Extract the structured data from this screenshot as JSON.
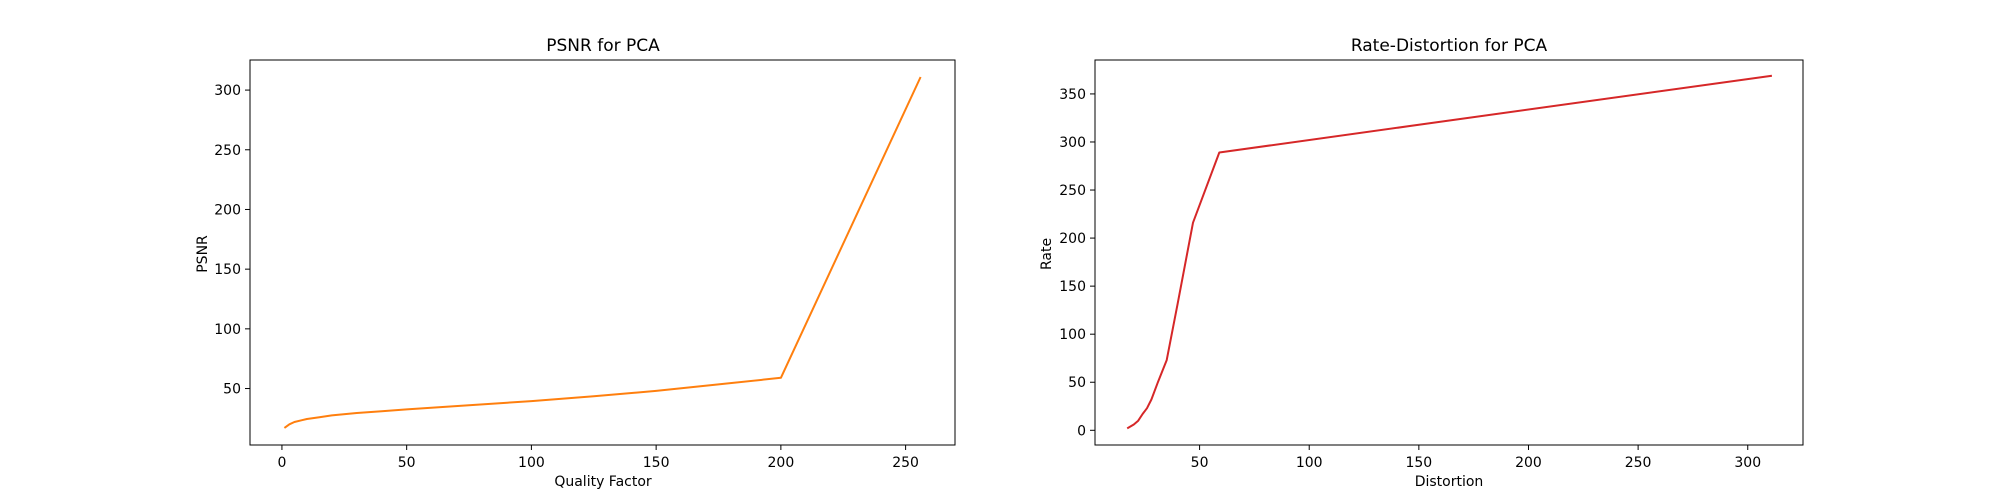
{
  "chart_data": [
    {
      "type": "line",
      "title": "PSNR for PCA",
      "xlabel": "Quality Factor",
      "ylabel": "PSNR",
      "xlim": [
        -12.8,
        269.8
      ],
      "ylim": [
        2.7,
        325.2
      ],
      "xticks": [
        0,
        50,
        100,
        150,
        200,
        250
      ],
      "yticks": [
        50,
        100,
        150,
        200,
        250,
        300
      ],
      "grid": false,
      "color": "#ff7f0e",
      "series": [
        {
          "x": [
            1,
            3,
            5,
            8,
            10,
            15,
            20,
            30,
            40,
            50,
            75,
            100,
            125,
            150,
            175,
            200,
            256
          ],
          "values": [
            17,
            20,
            22,
            23.5,
            24.5,
            26,
            27.5,
            29.5,
            31,
            32.5,
            36,
            39.5,
            43.5,
            48,
            53.5,
            59,
            311
          ]
        }
      ]
    },
    {
      "type": "line",
      "title": "Rate-Distortion for PCA",
      "xlabel": "Distortion",
      "ylabel": "Rate",
      "xlim": [
        2.3,
        325.2
      ],
      "ylim": [
        -15.3,
        385.3
      ],
      "xticks": [
        50,
        100,
        150,
        200,
        250,
        300
      ],
      "yticks": [
        0,
        50,
        100,
        150,
        200,
        250,
        300,
        350
      ],
      "grid": false,
      "color": "#d62728",
      "series": [
        {
          "x": [
            17,
            20,
            22,
            24,
            26,
            28,
            31,
            35,
            40,
            47,
            59,
            311
          ],
          "values": [
            2,
            6,
            10,
            17,
            23,
            32,
            50,
            73,
            132,
            216,
            289,
            369
          ]
        }
      ]
    }
  ]
}
